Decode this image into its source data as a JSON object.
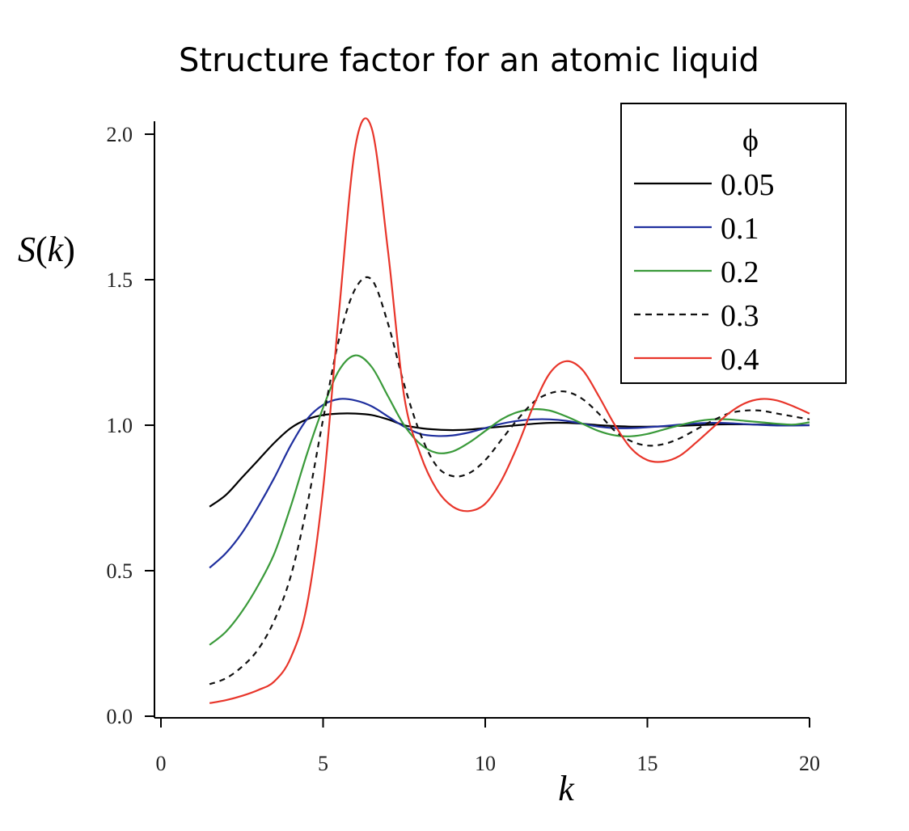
{
  "chart_data": {
    "type": "line",
    "title": "Structure factor for an atomic liquid",
    "xlabel": "k",
    "ylabel_var": "S",
    "ylabel_arg": "k",
    "xlim": [
      0,
      20
    ],
    "ylim": [
      0,
      2.0
    ],
    "xticks": [
      0,
      5,
      10,
      15,
      20
    ],
    "yticks": [
      "0.0",
      "0.5",
      "1.0",
      "1.5",
      "2.0"
    ],
    "legend_title": "ϕ",
    "legend_position": "top-right",
    "x": [
      1.5,
      2,
      2.5,
      3,
      3.5,
      4,
      4.5,
      5,
      5.5,
      6,
      6.5,
      7,
      7.5,
      8,
      8.5,
      9,
      9.5,
      10,
      10.5,
      11,
      11.5,
      12,
      12.5,
      13,
      13.5,
      14,
      14.5,
      15,
      15.5,
      16,
      16.5,
      17,
      17.5,
      18,
      18.5,
      19,
      19.5,
      20
    ],
    "series": [
      {
        "name": "0.05",
        "color": "#000000",
        "dash": "solid",
        "values": [
          0.72,
          0.76,
          0.82,
          0.88,
          0.94,
          0.99,
          1.02,
          1.035,
          1.04,
          1.04,
          1.035,
          1.02,
          1.0,
          0.99,
          0.985,
          0.983,
          0.985,
          0.99,
          0.995,
          1.0,
          1.005,
          1.008,
          1.008,
          1.005,
          1.0,
          0.997,
          0.995,
          0.995,
          0.996,
          0.998,
          1.0,
          1.002,
          1.003,
          1.003,
          1.002,
          1.001,
          1.0,
          1.0
        ]
      },
      {
        "name": "0.1",
        "color": "#1f2f9e",
        "dash": "solid",
        "values": [
          0.51,
          0.56,
          0.63,
          0.72,
          0.82,
          0.93,
          1.02,
          1.07,
          1.09,
          1.085,
          1.065,
          1.03,
          0.995,
          0.97,
          0.963,
          0.965,
          0.975,
          0.99,
          1.005,
          1.015,
          1.02,
          1.02,
          1.015,
          1.005,
          0.995,
          0.99,
          0.99,
          0.993,
          0.997,
          1.002,
          1.006,
          1.008,
          1.007,
          1.004,
          1.001,
          0.999,
          0.999,
          1.0
        ]
      },
      {
        "name": "0.2",
        "color": "#3a9a3a",
        "dash": "solid",
        "values": [
          0.245,
          0.29,
          0.36,
          0.45,
          0.56,
          0.72,
          0.9,
          1.06,
          1.19,
          1.24,
          1.2,
          1.1,
          1.0,
          0.935,
          0.905,
          0.91,
          0.94,
          0.98,
          1.02,
          1.045,
          1.055,
          1.05,
          1.03,
          1.005,
          0.98,
          0.965,
          0.962,
          0.97,
          0.985,
          1.0,
          1.013,
          1.02,
          1.02,
          1.015,
          1.01,
          1.005,
          1.002,
          1.01
        ]
      },
      {
        "name": "0.3",
        "color": "#111111",
        "dash": "dashed",
        "values": [
          0.11,
          0.13,
          0.17,
          0.23,
          0.33,
          0.48,
          0.72,
          1.02,
          1.3,
          1.47,
          1.5,
          1.35,
          1.14,
          0.97,
          0.86,
          0.825,
          0.835,
          0.88,
          0.95,
          1.02,
          1.08,
          1.11,
          1.115,
          1.09,
          1.04,
          0.98,
          0.945,
          0.93,
          0.935,
          0.955,
          0.985,
          1.015,
          1.04,
          1.05,
          1.05,
          1.04,
          1.03,
          1.02
        ]
      },
      {
        "name": "0.4",
        "color": "#e8352a",
        "dash": "solid",
        "values": [
          0.045,
          0.055,
          0.07,
          0.09,
          0.12,
          0.2,
          0.38,
          0.78,
          1.4,
          1.96,
          2.02,
          1.6,
          1.1,
          0.9,
          0.78,
          0.72,
          0.705,
          0.73,
          0.81,
          0.93,
          1.07,
          1.18,
          1.22,
          1.19,
          1.1,
          1.0,
          0.92,
          0.88,
          0.875,
          0.895,
          0.94,
          0.99,
          1.04,
          1.075,
          1.09,
          1.085,
          1.065,
          1.04
        ]
      }
    ]
  }
}
